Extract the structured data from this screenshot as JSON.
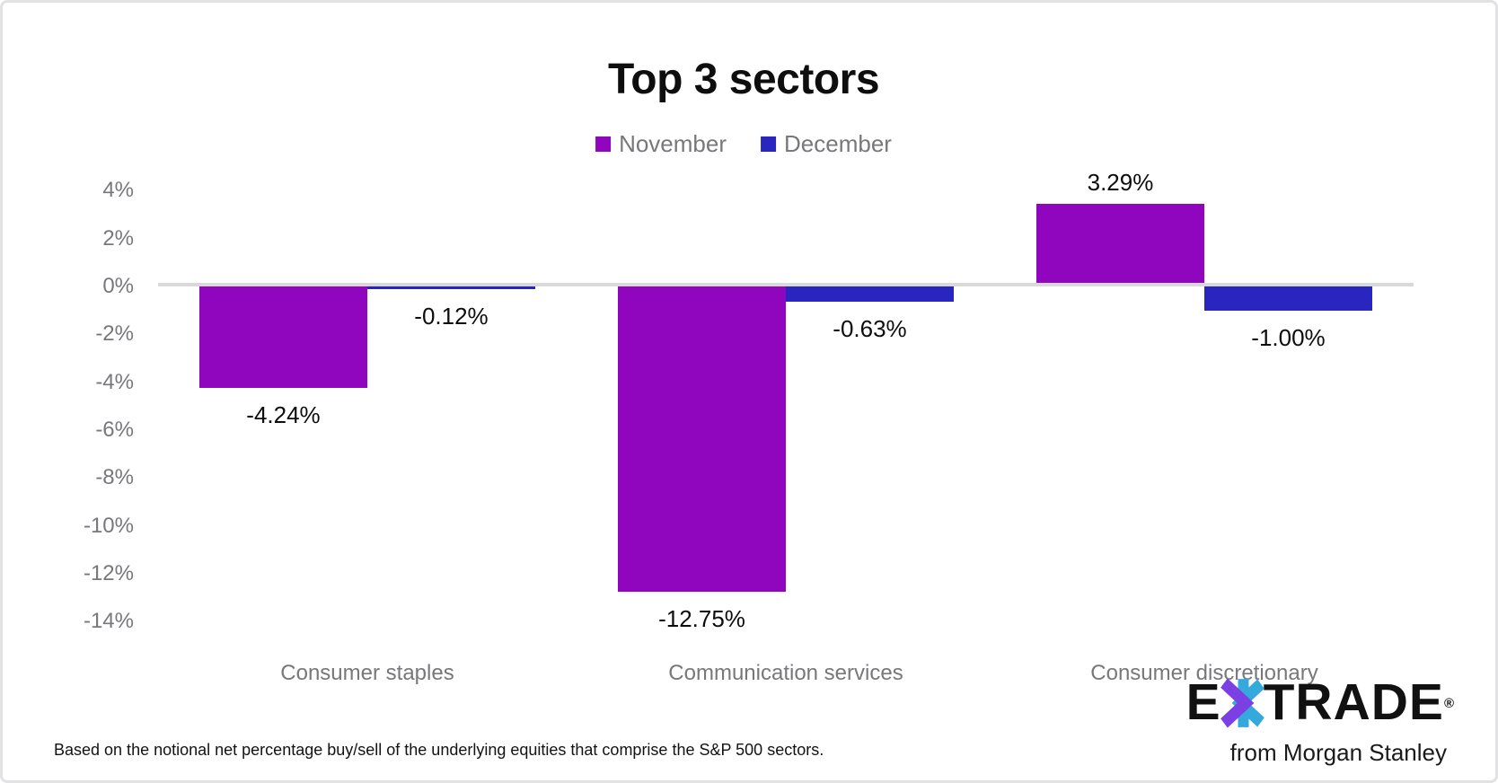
{
  "title": "Top 3 sectors",
  "chart_data": {
    "type": "bar",
    "title": "Top 3 sectors",
    "categories": [
      "Consumer staples",
      "Communication services",
      "Consumer discretionary"
    ],
    "series": [
      {
        "name": "November",
        "color": "#9005BE",
        "values": [
          -4.24,
          -12.75,
          3.29
        ],
        "data_labels": [
          "-4.24%",
          "-12.75%",
          "3.29%"
        ]
      },
      {
        "name": "December",
        "color": "#2826BE",
        "values": [
          -0.12,
          -0.63,
          -1.0
        ],
        "data_labels": [
          "-0.12%",
          "-0.63%",
          "-1.00%"
        ]
      }
    ],
    "ylabel": "",
    "xlabel": "",
    "ylim": [
      -14,
      4
    ],
    "ytick_values": [
      4,
      2,
      0,
      -2,
      -4,
      -6,
      -8,
      -10,
      -12,
      -14
    ],
    "ytick_labels": [
      "4%",
      "2%",
      "0%",
      "-2%",
      "-4%",
      "-6%",
      "-8%",
      "-10%",
      "-12%",
      "-14%"
    ],
    "grid": "zero-baseline-only",
    "legend_position": "top-center",
    "title_color": "#0e0e0f",
    "axis_text_color": "#77787b",
    "data_label_color": "#0d0d0d",
    "baseline_color": "#d9d9d9"
  },
  "legend": [
    {
      "label": "November",
      "color": "#9005BE"
    },
    {
      "label": "December",
      "color": "#2826BE"
    }
  ],
  "footnote": "Based on the notional net percentage buy/sell of the underlying equities that comprise the S&P 500 sectors.",
  "logo": {
    "name": "E*TRADE from Morgan Stanley",
    "e": "E",
    "trade": "TRADE",
    "registered": "®",
    "tagline": "from Morgan Stanley",
    "asterisk_purple": "#7b3fe4",
    "asterisk_cyan": "#35a8dc"
  }
}
